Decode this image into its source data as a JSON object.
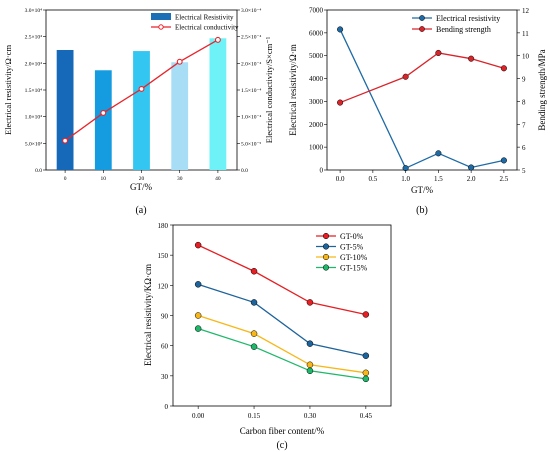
{
  "chart_data": [
    {
      "type": "bar",
      "panel_label": "(a)",
      "categories": [
        "0",
        "10",
        "20",
        "30",
        "40"
      ],
      "series": [
        {
          "name": "Electrical Resistivity",
          "kind": "bar",
          "axis": "left",
          "values": [
            22500,
            18700,
            22300,
            20200,
            24700
          ],
          "colors": [
            "#1668b8",
            "#159be0",
            "#33c6f0",
            "#a8ddf6",
            "#6ff2f7"
          ],
          "legend_color": "#1b6fb5"
        },
        {
          "name": "Electrical conductivity",
          "kind": "line",
          "axis": "right",
          "values": [
            5.5e-05,
            0.000107,
            0.000152,
            0.000203,
            0.000244
          ],
          "color": "#e8242b"
        }
      ],
      "xlabel": "GT/%",
      "ylabel": "Electrical resistivity/Ω·cm",
      "ylabel_right": "Electrical conductivity/S×cm⁻¹",
      "ylim": [
        0,
        30000
      ],
      "ylim_right": [
        0,
        0.0003
      ],
      "yticks": [
        "0.0",
        "5.0×10³",
        "1.0×10⁴",
        "1.5×10⁴",
        "2.0×10⁴",
        "2.5×10⁴",
        "3.0×10⁴"
      ],
      "yticks_right": [
        "0.0",
        "5.0×10⁻⁵",
        "1.0×10⁻⁴",
        "1.5×10⁻⁴",
        "2.0×10⁻⁴",
        "2.5×10⁻⁴",
        "3.0×10⁻⁴"
      ],
      "legend_position": "top-right"
    },
    {
      "type": "line",
      "panel_label": "(b)",
      "x": [
        0.0,
        1.0,
        1.5,
        2.0,
        2.5
      ],
      "xticks": [
        "0.0",
        "0.5",
        "1.0",
        "1.5",
        "2.0",
        "2.5"
      ],
      "series": [
        {
          "name": "Electrical resistivity",
          "axis": "left",
          "values": [
            6150,
            80,
            730,
            110,
            420
          ],
          "color": "#1d6aa5"
        },
        {
          "name": "Bending strength",
          "axis": "right",
          "values": [
            7.95,
            9.08,
            10.12,
            9.87,
            9.45
          ],
          "color": "#d9242a"
        }
      ],
      "xlabel": "GT/%",
      "ylabel": "Electrical resistivity/Ω·m",
      "ylabel_right": "Bending strength/MPa",
      "xlim": [
        -0.2,
        2.7
      ],
      "ylim": [
        0,
        7000
      ],
      "ylim_right": [
        5,
        12
      ],
      "yticks": [
        "0",
        "1000",
        "2000",
        "3000",
        "4000",
        "5000",
        "6000",
        "7000"
      ],
      "yticks_right": [
        "5",
        "6",
        "7",
        "8",
        "9",
        "10",
        "11",
        "12"
      ],
      "legend_position": "top-right"
    },
    {
      "type": "line",
      "panel_label": "(c)",
      "categories": [
        "0.00",
        "0.15",
        "0.30",
        "0.45"
      ],
      "series": [
        {
          "name": "GT-0%",
          "values": [
            160,
            134,
            103,
            91
          ],
          "color": "#e51f23"
        },
        {
          "name": "GT-5%",
          "values": [
            121,
            103,
            62,
            50
          ],
          "color": "#1d639c"
        },
        {
          "name": "GT-10%",
          "values": [
            90,
            72,
            41,
            33
          ],
          "color": "#f7b718"
        },
        {
          "name": "GT-15%",
          "values": [
            77,
            59,
            35,
            27
          ],
          "color": "#1fb86a"
        }
      ],
      "xlabel": "Carbon fiber content/%",
      "ylabel": "Electrical resistivity/KΩ·cm",
      "ylim": [
        0,
        180
      ],
      "yticks": [
        "0",
        "30",
        "60",
        "90",
        "120",
        "150",
        "180"
      ],
      "legend_position": "top-right"
    }
  ]
}
